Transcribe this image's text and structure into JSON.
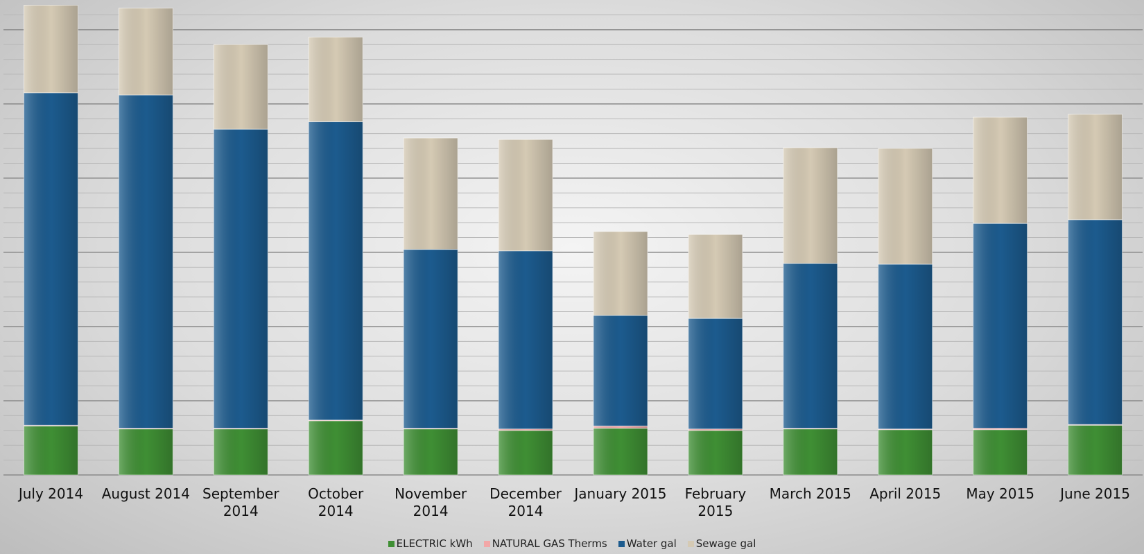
{
  "chart_data": {
    "type": "stacked_bar",
    "categories": [
      "July 2014",
      "August 2014",
      "September 2014",
      "October 2014",
      "November 2014",
      "December 2014",
      "January 2015",
      "February 2015",
      "March 2015",
      "April 2015",
      "May 2015",
      "June 2015"
    ],
    "series": [
      {
        "name": "ELECTRIC kWh",
        "color": "#3f8f34",
        "values": [
          0.66,
          0.62,
          0.62,
          0.73,
          0.62,
          0.6,
          0.63,
          0.6,
          0.62,
          0.61,
          0.61,
          0.67
        ]
      },
      {
        "name": "NATURAL GAS Therms",
        "color": "#f2a7a7",
        "values": [
          0.01,
          0.01,
          0.01,
          0.01,
          0.01,
          0.02,
          0.03,
          0.02,
          0.01,
          0.01,
          0.02,
          0.01
        ]
      },
      {
        "name": "Water gal",
        "color": "#1c5b8e",
        "values": [
          4.48,
          4.49,
          4.03,
          4.02,
          2.41,
          2.4,
          1.49,
          1.49,
          2.22,
          2.22,
          2.76,
          2.76
        ]
      },
      {
        "name": "Sewage gal",
        "color": "#d5cab4",
        "values": [
          1.18,
          1.17,
          1.14,
          1.14,
          1.5,
          1.5,
          1.13,
          1.13,
          1.56,
          1.56,
          1.43,
          1.42
        ]
      }
    ],
    "ylim": [
      0,
      6.4
    ],
    "yticks": [
      0,
      1,
      2,
      3,
      4,
      5,
      6
    ],
    "minor_yticks": [
      0.2,
      0.4,
      0.6,
      0.8,
      1.2,
      1.4,
      1.6,
      1.8,
      2.2,
      2.4,
      2.6,
      2.8,
      3.2,
      3.4,
      3.6,
      3.8,
      4.2,
      4.4,
      4.6,
      4.8,
      5.2,
      5.4,
      5.6,
      5.8,
      6.2
    ],
    "grid": true,
    "legend": "bottom"
  }
}
